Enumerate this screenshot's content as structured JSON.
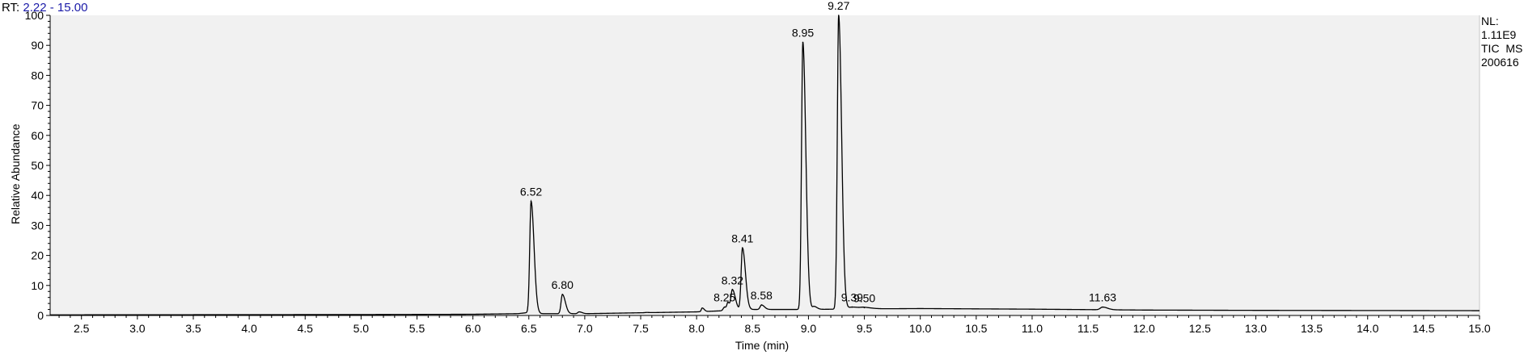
{
  "header": {
    "rt_prefix": "RT:",
    "rt_range": "2.22 - 15.00"
  },
  "info": {
    "nl_label": "NL:",
    "nl_value": "1.11E9",
    "scan_type": "TIC  MS",
    "file_id": "200616"
  },
  "chart_data": {
    "type": "line",
    "xlabel": "Time (min)",
    "ylabel": "Relative Abundance",
    "xlim": [
      2.22,
      15.0
    ],
    "ylim": [
      0,
      100
    ],
    "x_ticks": [
      "2.5",
      "3.0",
      "3.5",
      "4.0",
      "4.5",
      "5.0",
      "5.5",
      "6.0",
      "6.5",
      "7.0",
      "7.5",
      "8.0",
      "8.5",
      "9.0",
      "9.5",
      "10.0",
      "10.5",
      "11.0",
      "11.5",
      "12.0",
      "12.5",
      "13.0",
      "13.5",
      "14.0",
      "14.5",
      "15.0"
    ],
    "y_ticks": [
      "0",
      "10",
      "20",
      "30",
      "40",
      "50",
      "60",
      "70",
      "80",
      "90",
      "100"
    ],
    "baseline": [
      [
        2.22,
        0.2
      ],
      [
        5.0,
        0.3
      ],
      [
        6.0,
        0.4
      ],
      [
        6.4,
        0.6
      ],
      [
        6.5,
        1.0
      ],
      [
        6.6,
        0.6
      ],
      [
        7.0,
        0.6
      ],
      [
        7.5,
        0.9
      ],
      [
        8.0,
        1.2
      ],
      [
        8.5,
        2.0
      ],
      [
        9.0,
        2.0
      ],
      [
        9.5,
        2.2
      ],
      [
        10.0,
        2.3
      ],
      [
        11.0,
        2.1
      ],
      [
        12.0,
        1.8
      ],
      [
        13.0,
        1.7
      ],
      [
        15.0,
        1.6
      ]
    ],
    "peaks": [
      {
        "rt": 6.52,
        "label": "6.52",
        "height": 38,
        "width": 0.012
      },
      {
        "rt": 6.8,
        "label": "6.80",
        "height": 7,
        "width": 0.012
      },
      {
        "rt": 6.95,
        "label": "",
        "height": 1.2,
        "width": 0.012
      },
      {
        "rt": 7.55,
        "label": "",
        "height": 1.0,
        "width": 0.012
      },
      {
        "rt": 8.05,
        "label": "",
        "height": 2.5,
        "width": 0.008
      },
      {
        "rt": 8.25,
        "label": "8.25",
        "height": 2.8,
        "width": 0.012
      },
      {
        "rt": 8.28,
        "label": "",
        "height": 3.8,
        "width": 0.008
      },
      {
        "rt": 8.32,
        "label": "8.32",
        "height": 8.5,
        "width": 0.012
      },
      {
        "rt": 8.41,
        "label": "8.41",
        "height": 22.5,
        "width": 0.012
      },
      {
        "rt": 8.58,
        "label": "8.58",
        "height": 3.5,
        "width": 0.012
      },
      {
        "rt": 8.95,
        "label": "8.95",
        "height": 91,
        "width": 0.012
      },
      {
        "rt": 9.05,
        "label": "",
        "height": 3.0,
        "width": 0.012
      },
      {
        "rt": 9.27,
        "label": "9.27",
        "height": 100,
        "width": 0.012
      },
      {
        "rt": 9.39,
        "label": "9.39",
        "height": 2.8,
        "width": 0.03
      },
      {
        "rt": 9.5,
        "label": "9.50",
        "height": 2.6,
        "width": 0.03
      },
      {
        "rt": 11.63,
        "label": "11.63",
        "height": 2.8,
        "width": 0.02
      }
    ],
    "line_color": "#000000",
    "plot_background": "#f1f1f1",
    "grid": false,
    "legend": "none"
  }
}
